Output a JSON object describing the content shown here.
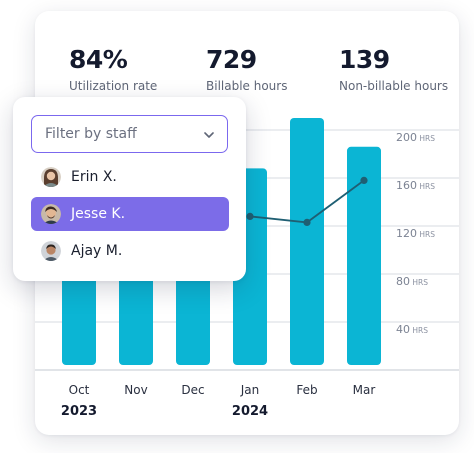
{
  "metrics": [
    {
      "value": "84%",
      "label": "Utilization rate"
    },
    {
      "value": "729",
      "label": "Billable hours"
    },
    {
      "value": "139",
      "label": "Non-billable hours"
    }
  ],
  "filter": {
    "placeholder": "Filter by staff",
    "options": [
      {
        "name": "Erin X.",
        "selected": false
      },
      {
        "name": "Jesse K.",
        "selected": true
      },
      {
        "name": "Ajay M.",
        "selected": false
      }
    ]
  },
  "colors": {
    "bar": "#0bb5d4",
    "line": "#1f5f73",
    "accent": "#7c6ce8",
    "grid": "#d7dbe2"
  },
  "chart_data": {
    "type": "bar",
    "categories": [
      "Oct",
      "Nov",
      "Dec",
      "Jan",
      "Feb",
      "Mar"
    ],
    "year_labels": [
      {
        "text": "2023",
        "under": "Oct"
      },
      {
        "text": "2024",
        "under": "Jan"
      }
    ],
    "series": [
      {
        "type": "bar",
        "values": [
          130,
          150,
          160,
          168,
          210,
          186
        ]
      },
      {
        "type": "line",
        "values": [
          null,
          null,
          null,
          128,
          123,
          158
        ]
      }
    ],
    "ylim": [
      0,
      200
    ],
    "y_ticks": [
      {
        "value": 200,
        "label": "200 HRS"
      },
      {
        "value": 160,
        "label": "160 HRS"
      },
      {
        "value": 120,
        "label": "120 HRS"
      },
      {
        "value": 80,
        "label": "80 HRS"
      },
      {
        "value": 40,
        "label": "40 HRS"
      }
    ],
    "grid": true
  }
}
